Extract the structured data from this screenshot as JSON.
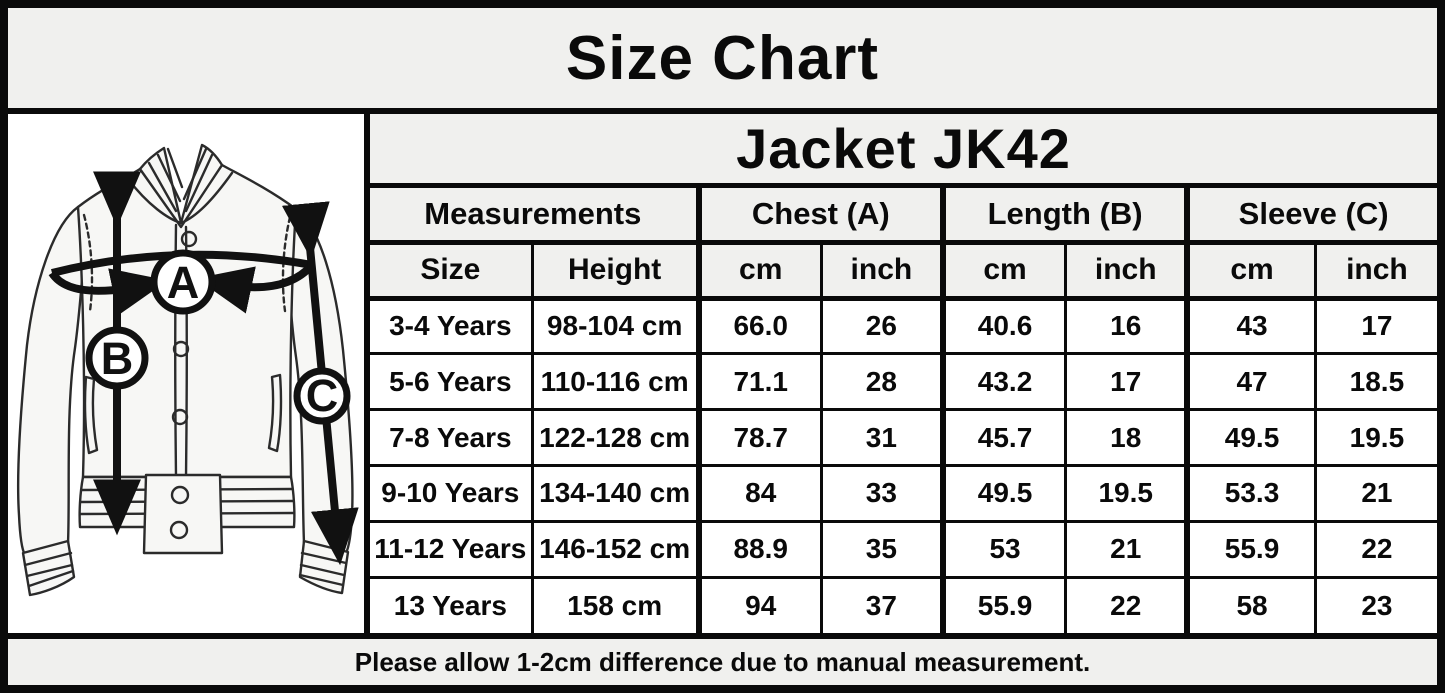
{
  "title": "Size Chart",
  "product_title": "Jacket JK42",
  "footer_note": "Please allow 1-2cm difference due to manual measurement.",
  "diagram": {
    "description": "jacket-sketch-with-measurement-arrows",
    "markers": {
      "chest": "A",
      "length": "B",
      "sleeve": "C"
    }
  },
  "table": {
    "group_headers": [
      {
        "label": "Measurements",
        "span": 2
      },
      {
        "label": "Chest (A)",
        "span": 2
      },
      {
        "label": "Length (B)",
        "span": 2
      },
      {
        "label": "Sleeve (C)",
        "span": 2
      }
    ],
    "sub_headers": [
      "Size",
      "Height",
      "cm",
      "inch",
      "cm",
      "inch",
      "cm",
      "inch"
    ],
    "rows": [
      [
        "3-4 Years",
        "98-104 cm",
        "66.0",
        "26",
        "40.6",
        "16",
        "43",
        "17"
      ],
      [
        "5-6 Years",
        "110-116 cm",
        "71.1",
        "28",
        "43.2",
        "17",
        "47",
        "18.5"
      ],
      [
        "7-8 Years",
        "122-128 cm",
        "78.7",
        "31",
        "45.7",
        "18",
        "49.5",
        "19.5"
      ],
      [
        "9-10 Years",
        "134-140 cm",
        "84",
        "33",
        "49.5",
        "19.5",
        "53.3",
        "21"
      ],
      [
        "11-12 Years",
        "146-152 cm",
        "88.9",
        "35",
        "53",
        "21",
        "55.9",
        "22"
      ],
      [
        "13 Years",
        "158 cm",
        "94",
        "37",
        "55.9",
        "22",
        "58",
        "23"
      ]
    ]
  },
  "colors": {
    "band_background": "#f0f0ee",
    "cell_background": "#ffffff",
    "border": "#0a0a0a",
    "text": "#0a0a0a"
  },
  "chart_data": {
    "type": "table",
    "title": "Size Chart",
    "subtitle": "Jacket JK42",
    "columns": [
      "Size",
      "Height",
      "Chest (A) cm",
      "Chest (A) inch",
      "Length (B) cm",
      "Length (B) inch",
      "Sleeve (C) cm",
      "Sleeve (C) inch"
    ],
    "rows": [
      [
        "3-4 Years",
        "98-104 cm",
        66.0,
        26,
        40.6,
        16,
        43,
        17
      ],
      [
        "5-6 Years",
        "110-116 cm",
        71.1,
        28,
        43.2,
        17,
        47,
        18.5
      ],
      [
        "7-8 Years",
        "122-128 cm",
        78.7,
        31,
        45.7,
        18,
        49.5,
        19.5
      ],
      [
        "9-10 Years",
        "134-140 cm",
        84,
        33,
        49.5,
        19.5,
        53.3,
        21
      ],
      [
        "11-12 Years",
        "146-152 cm",
        88.9,
        35,
        53,
        21,
        55.9,
        22
      ],
      [
        "13 Years",
        "158 cm",
        94,
        37,
        55.9,
        22,
        58,
        23
      ]
    ],
    "note": "Please allow 1-2cm difference due to manual measurement."
  }
}
